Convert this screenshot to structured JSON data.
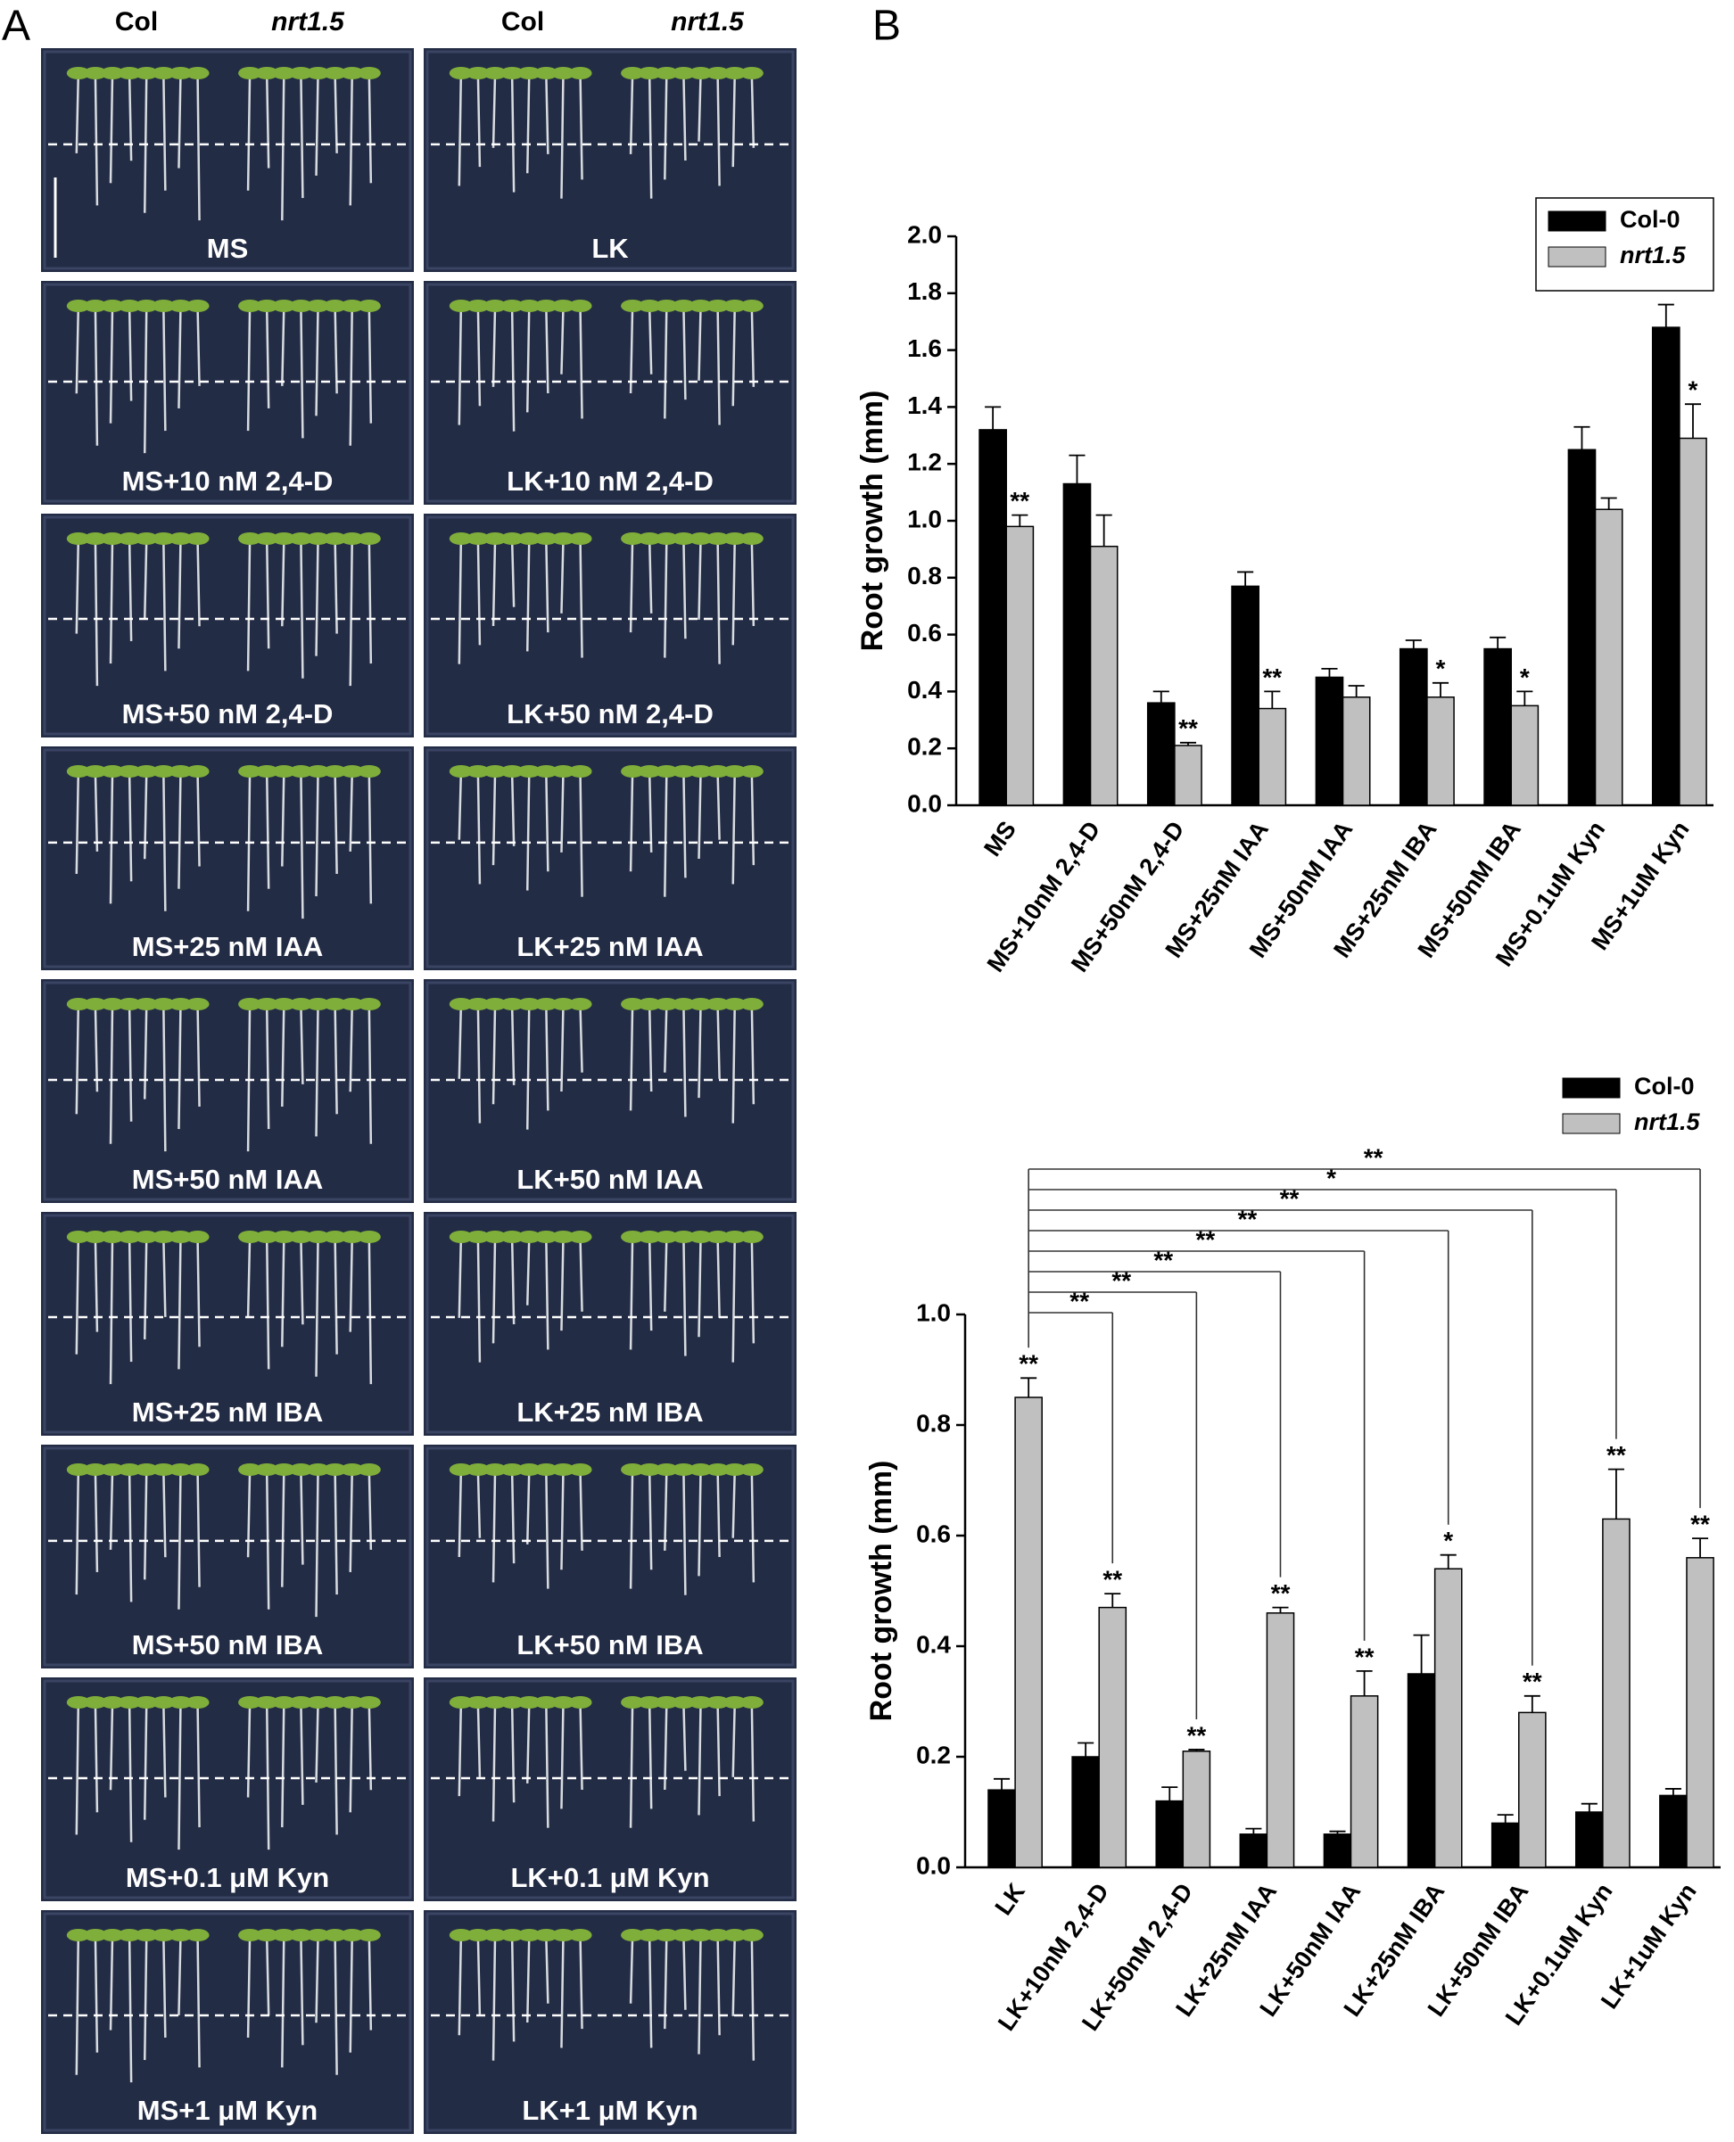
{
  "panel_labels": [
    "A",
    "B"
  ],
  "panel_a": {
    "column_headers": [
      "Col",
      "nrt1.5",
      "Col",
      "nrt1.5"
    ],
    "panels": [
      [
        "MS",
        "LK"
      ],
      [
        "MS+10 nM 2,4-D",
        "LK+10 nM 2,4-D"
      ],
      [
        "MS+50 nM 2,4-D",
        "LK+50 nM 2,4-D"
      ],
      [
        "MS+25 nM IAA",
        "LK+25 nM IAA"
      ],
      [
        "MS+50 nM IAA",
        "LK+50 nM IAA"
      ],
      [
        "MS+25 nM IBA",
        "LK+25 nM IBA"
      ],
      [
        "MS+50 nM IBA",
        "LK+50 nM IBA"
      ],
      [
        "MS+0.1 μM Kyn",
        "LK+0.1 μM Kyn"
      ],
      [
        "MS+1 μM Kyn",
        "LK+1 μM Kyn"
      ]
    ]
  },
  "chart_data": [
    {
      "type": "bar",
      "y_label": "Root growth (mm)",
      "categories": [
        "MS",
        "MS+10nM 2,4-D",
        "MS+50nM 2,4-D",
        "MS+25nM IAA",
        "MS+50nM IAA",
        "MS+25nM IBA",
        "MS+50nM IBA",
        "MS+0.1uM Kyn",
        "MS+1uM Kyn"
      ],
      "series": [
        {
          "name": "Col-0",
          "color": "#000000",
          "values": [
            1.32,
            1.13,
            0.36,
            0.77,
            0.45,
            0.55,
            0.55,
            1.25,
            1.68
          ],
          "errors": [
            0.08,
            0.1,
            0.04,
            0.05,
            0.03,
            0.03,
            0.04,
            0.08,
            0.08
          ]
        },
        {
          "name": "nrt1.5",
          "color": "#c0c0c0",
          "values": [
            0.98,
            0.91,
            0.21,
            0.34,
            0.38,
            0.38,
            0.35,
            1.04,
            1.29
          ],
          "errors": [
            0.04,
            0.11,
            0.01,
            0.06,
            0.04,
            0.05,
            0.05,
            0.04,
            0.12
          ],
          "stars": [
            "**",
            null,
            "**",
            "**",
            null,
            "*",
            "*",
            null,
            "*"
          ]
        }
      ],
      "ylim": [
        0,
        2.0
      ],
      "yticks": [
        {
          "value": 0,
          "label": "0.0"
        },
        0.2,
        0.4,
        0.6,
        0.8,
        {
          "value": 1,
          "label": "1.0"
        },
        1.2,
        1.4,
        1.6,
        1.8,
        {
          "value": 2,
          "label": "2.0"
        }
      ],
      "legend": "upper right",
      "legend_box": true
    },
    {
      "type": "bar",
      "y_label": "Root growth (mm)",
      "categories": [
        "LK",
        "LK+10nM 2,4-D",
        "LK+50nM 2,4-D",
        "LK+25nM IAA",
        "LK+50nM IAA",
        "LK+25nM IBA",
        "LK+50nM IBA",
        "LK+0.1uM Kyn",
        "LK+1uM Kyn"
      ],
      "series": [
        {
          "name": "Col-0",
          "color": "#000000",
          "values": [
            0.14,
            0.2,
            0.12,
            0.06,
            0.06,
            0.35,
            0.08,
            0.1,
            0.13
          ],
          "errors": [
            0.02,
            0.025,
            0.025,
            0.01,
            0.005,
            0.07,
            0.015,
            0.015,
            0.012
          ]
        },
        {
          "name": "nrt1.5",
          "color": "#c0c0c0",
          "values": [
            0.85,
            0.47,
            0.21,
            0.46,
            0.31,
            0.54,
            0.28,
            0.63,
            0.56
          ],
          "errors": [
            0.035,
            0.025,
            0.003,
            0.01,
            0.045,
            0.025,
            0.03,
            0.09,
            0.035
          ],
          "stars": [
            "**",
            "**",
            "**",
            "**",
            "**",
            "*",
            "**",
            "**",
            "**"
          ]
        }
      ],
      "comparison_labels": [
        null,
        "**",
        "**",
        "**",
        "**",
        "**",
        "**",
        "*",
        "**"
      ],
      "ylim": [
        0,
        1.0
      ],
      "yticks": [
        {
          "value": 0,
          "label": "0.0"
        },
        0.2,
        0.4,
        0.6,
        0.8,
        {
          "value": 1,
          "label": "1.0"
        }
      ],
      "legend": "upper right",
      "legend_box": false
    }
  ]
}
